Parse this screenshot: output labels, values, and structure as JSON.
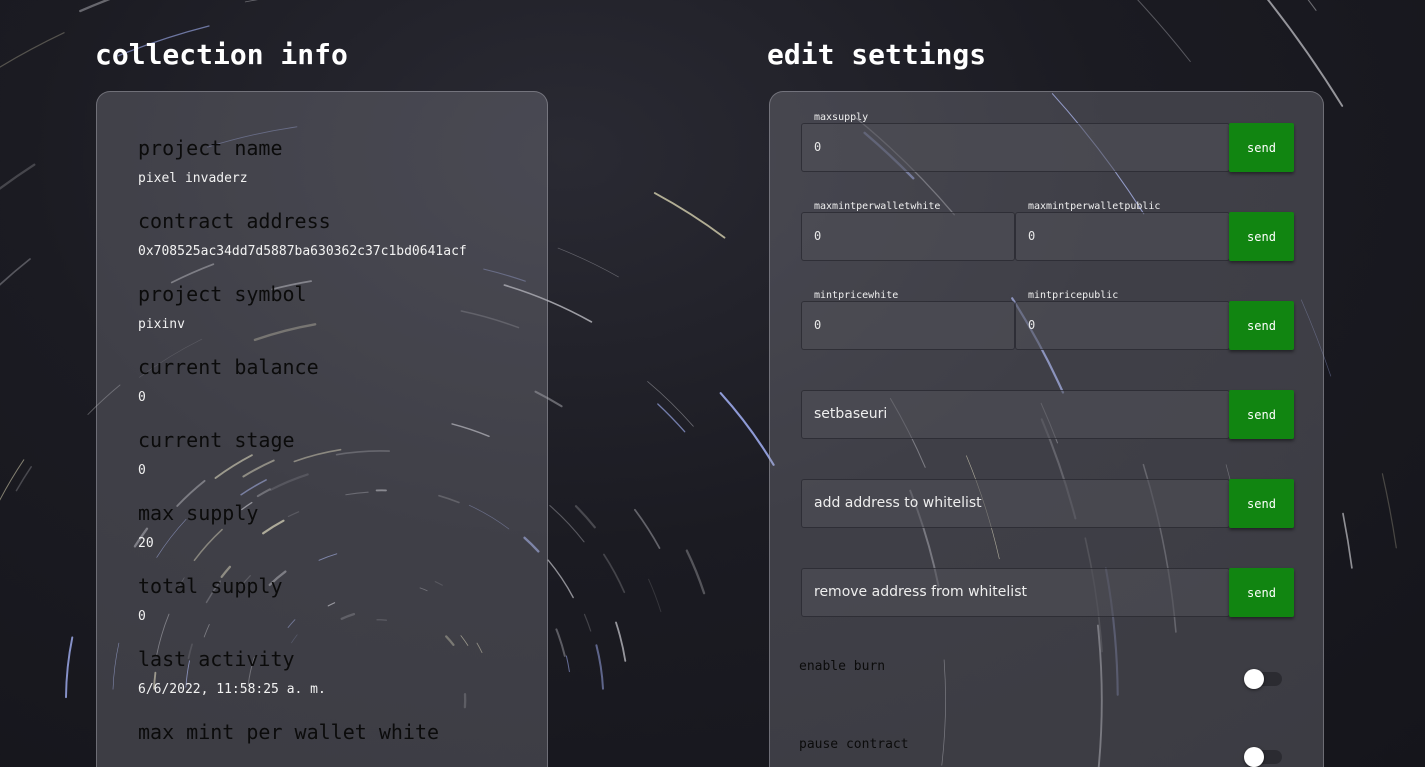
{
  "collection_info": {
    "title": "collection info",
    "items": [
      {
        "label": "project name",
        "value": "pixel invaderz"
      },
      {
        "label": "contract address",
        "value": "0x708525ac34dd7d5887ba630362c37c1bd0641acf"
      },
      {
        "label": "project symbol",
        "value": "pixinv"
      },
      {
        "label": "current balance",
        "value": "0"
      },
      {
        "label": "current stage",
        "value": "0"
      },
      {
        "label": "max supply",
        "value": "20"
      },
      {
        "label": "total supply",
        "value": "0"
      },
      {
        "label": "last activity",
        "value": "6/6/2022, 11:58:25 a. m."
      },
      {
        "label": "max mint per wallet white",
        "value": ""
      }
    ]
  },
  "edit_settings": {
    "title": "edit settings",
    "maxsupply": {
      "label": "maxsupply",
      "value": "0"
    },
    "maxmintperwalletwhite": {
      "label": "maxmintperwalletwhite",
      "value": "0"
    },
    "maxmintperwalletpublic": {
      "label": "maxmintperwalletpublic",
      "value": "0"
    },
    "mintpricewhite": {
      "label": "mintpricewhite",
      "value": "0"
    },
    "mintpricepublic": {
      "label": "mintpricepublic",
      "value": "0"
    },
    "setbaseuri": {
      "placeholder": "setbaseuri"
    },
    "add_whitelist": {
      "placeholder": "add address to whitelist"
    },
    "remove_whitelist": {
      "placeholder": "remove address from whitelist"
    },
    "send_label": "send",
    "enable_burn": {
      "label": "enable burn",
      "on": false
    },
    "pause_contract": {
      "label": "pause contract",
      "on": false
    }
  },
  "colors": {
    "send_button": "#118511",
    "title_text": "#ffffff",
    "background": "#1b1b22"
  }
}
